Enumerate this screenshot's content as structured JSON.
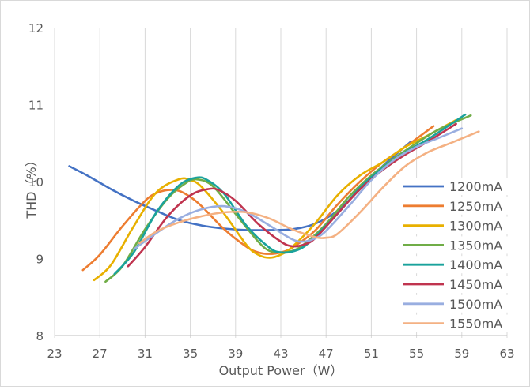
{
  "chart_data": {
    "type": "line",
    "title": "",
    "xlabel": "Output Power（W）",
    "ylabel": "THD（%）",
    "xlim": [
      23,
      63
    ],
    "ylim": [
      8,
      12
    ],
    "x_ticks": [
      "23",
      "27",
      "31",
      "35",
      "39",
      "43",
      "47",
      "51",
      "55",
      "59",
      "63"
    ],
    "y_ticks": [
      "8",
      "9",
      "10",
      "11",
      "12"
    ],
    "grid": "vertical",
    "legend_position": "right",
    "series": [
      {
        "name": "1200mA",
        "color": "#4472C4",
        "x": [
          24.3,
          26,
          28,
          30,
          32,
          34,
          36,
          38,
          40,
          42,
          44,
          46,
          48,
          50,
          52,
          54.5
        ],
        "y": [
          10.2,
          10.07,
          9.9,
          9.75,
          9.62,
          9.5,
          9.43,
          9.39,
          9.37,
          9.37,
          9.38,
          9.45,
          9.62,
          9.9,
          10.2,
          10.52
        ]
      },
      {
        "name": "1250mA",
        "color": "#ED7D31",
        "x": [
          25.5,
          27,
          29,
          31,
          32,
          33,
          34,
          35,
          36,
          38,
          40,
          41,
          42,
          43,
          44,
          46,
          48,
          50,
          52,
          54,
          56.5
        ],
        "y": [
          8.85,
          9.05,
          9.42,
          9.75,
          9.85,
          9.89,
          9.88,
          9.8,
          9.68,
          9.38,
          9.15,
          9.08,
          9.06,
          9.08,
          9.14,
          9.36,
          9.7,
          10,
          10.25,
          10.45,
          10.72
        ]
      },
      {
        "name": "1300mA",
        "color": "#E8B000",
        "x": [
          26.5,
          28,
          30,
          32,
          34,
          35,
          36,
          38,
          40,
          41,
          42,
          43,
          44,
          46,
          48,
          50,
          52,
          54,
          56,
          58.5
        ],
        "y": [
          8.72,
          8.92,
          9.42,
          9.86,
          10.03,
          10.02,
          9.93,
          9.58,
          9.17,
          9.05,
          9.01,
          9.05,
          9.15,
          9.45,
          9.82,
          10.08,
          10.25,
          10.45,
          10.6,
          10.8
        ]
      },
      {
        "name": "1350mA",
        "color": "#70AD47",
        "x": [
          27.5,
          29,
          31,
          33,
          34.5,
          35.5,
          37,
          39,
          41,
          42,
          43,
          44,
          45,
          47,
          49,
          51,
          53,
          55,
          57,
          59.8
        ],
        "y": [
          8.7,
          8.9,
          9.38,
          9.78,
          9.97,
          10.03,
          9.94,
          9.58,
          9.22,
          9.1,
          9.08,
          9.1,
          9.18,
          9.45,
          9.8,
          10.08,
          10.3,
          10.5,
          10.68,
          10.86
        ]
      },
      {
        "name": "1400mA",
        "color": "#1AA29C",
        "x": [
          28.3,
          30,
          32,
          34,
          35.5,
          36.5,
          38,
          40,
          42,
          43,
          44,
          45,
          46,
          48,
          50,
          52,
          54,
          56,
          59.3
        ],
        "y": [
          8.8,
          9.08,
          9.6,
          9.95,
          10.05,
          10.02,
          9.84,
          9.42,
          9.14,
          9.08,
          9.09,
          9.15,
          9.28,
          9.58,
          9.92,
          10.18,
          10.38,
          10.55,
          10.87
        ]
      },
      {
        "name": "1450mA",
        "color": "#C0344F",
        "x": [
          29.5,
          31,
          33,
          35,
          36.5,
          37.5,
          39,
          41,
          43,
          44,
          45,
          46,
          48,
          50,
          52,
          54,
          56,
          58.5
        ],
        "y": [
          8.9,
          9.15,
          9.55,
          9.82,
          9.9,
          9.89,
          9.75,
          9.45,
          9.22,
          9.16,
          9.18,
          9.26,
          9.58,
          9.9,
          10.15,
          10.35,
          10.52,
          10.75
        ]
      },
      {
        "name": "1500mA",
        "color": "#99AEE0",
        "x": [
          30,
          32,
          34,
          36,
          38,
          40,
          42,
          44,
          45,
          46,
          47,
          49,
          51,
          53,
          55,
          57,
          59
        ],
        "y": [
          9.12,
          9.33,
          9.52,
          9.64,
          9.68,
          9.6,
          9.43,
          9.25,
          9.22,
          9.26,
          9.36,
          9.68,
          10.02,
          10.28,
          10.45,
          10.57,
          10.69
        ]
      },
      {
        "name": "1550mA",
        "color": "#F4B183",
        "x": [
          30.5,
          32,
          34,
          36,
          38,
          40,
          42,
          44,
          46,
          47,
          48,
          50,
          52,
          54,
          56,
          58,
          60.5
        ],
        "y": [
          9.2,
          9.35,
          9.47,
          9.55,
          9.6,
          9.6,
          9.52,
          9.38,
          9.28,
          9.27,
          9.32,
          9.6,
          9.92,
          10.2,
          10.38,
          10.5,
          10.65
        ]
      }
    ]
  }
}
